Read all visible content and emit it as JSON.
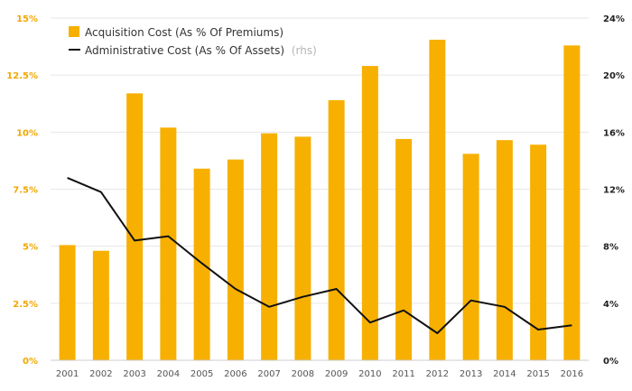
{
  "chart_data": {
    "type": "bar",
    "categories": [
      "2001",
      "2002",
      "2003",
      "2004",
      "2005",
      "2006",
      "2007",
      "2008",
      "2009",
      "2010",
      "2011",
      "2012",
      "2013",
      "2014",
      "2015",
      "2016"
    ],
    "series": [
      {
        "name": "Acquisition Cost (As % Of Premiums)",
        "type": "bar",
        "axis": "left",
        "color": "#f7b000",
        "values": [
          5.05,
          4.8,
          11.7,
          10.2,
          8.4,
          8.8,
          9.95,
          9.8,
          11.4,
          12.9,
          9.7,
          14.05,
          9.05,
          9.65,
          9.45,
          13.8
        ]
      },
      {
        "name": "Administrative Cost (As % Of Assets)",
        "name_note": "(rhs)",
        "type": "line",
        "axis": "right",
        "color": "#111111",
        "values": [
          12.8,
          11.8,
          8.4,
          8.7,
          6.8,
          5.0,
          3.75,
          4.45,
          5.0,
          2.65,
          3.5,
          1.9,
          4.2,
          3.75,
          2.15,
          2.45
        ]
      }
    ],
    "y_left": {
      "min": 0,
      "max": 15,
      "ticks": [
        0,
        2.5,
        5,
        7.5,
        10,
        12.5,
        15
      ],
      "tick_labels": [
        "0%",
        "2.5%",
        "5%",
        "7.5%",
        "10%",
        "12.5%",
        "15%"
      ]
    },
    "y_right": {
      "min": 0,
      "max": 24,
      "ticks": [
        0,
        4,
        8,
        12,
        16,
        20,
        24
      ],
      "tick_labels": [
        "0%",
        "4%",
        "8%",
        "12%",
        "16%",
        "20%",
        "24%"
      ]
    },
    "grid": true,
    "legend_position": "top-left",
    "title": "",
    "xlabel": "",
    "ylabel": ""
  }
}
